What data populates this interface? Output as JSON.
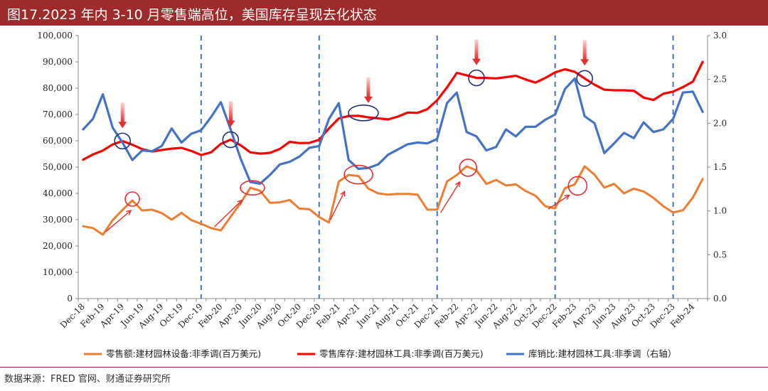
{
  "title": "图17.2023 年内 3-10 月零售端高位，美国库存呈现去化状态",
  "source": "数据来源：FRED 官网、财通证券研究所",
  "colors": {
    "title_bg": "#9e2b2b",
    "sales": "#ed7d31",
    "inventory": "#ff0000",
    "ratio": "#4472c4",
    "divider": "#4472c4",
    "annotation": "#e03030",
    "circle_blue": "#1f2f7a"
  },
  "chart_data": {
    "type": "line",
    "x": [
      "Dec-18",
      "Jan-19",
      "Feb-19",
      "Mar-19",
      "Apr-19",
      "May-19",
      "Jun-19",
      "Jul-19",
      "Aug-19",
      "Sep-19",
      "Oct-19",
      "Nov-19",
      "Dec-19",
      "Jan-20",
      "Feb-20",
      "Mar-20",
      "Apr-20",
      "May-20",
      "Jun-20",
      "Jul-20",
      "Aug-20",
      "Sep-20",
      "Oct-20",
      "Nov-20",
      "Dec-20",
      "Jan-21",
      "Feb-21",
      "Mar-21",
      "Apr-21",
      "May-21",
      "Jun-21",
      "Jul-21",
      "Aug-21",
      "Sep-21",
      "Oct-21",
      "Nov-21",
      "Dec-21",
      "Jan-22",
      "Feb-22",
      "Mar-22",
      "Apr-22",
      "May-22",
      "Jun-22",
      "Jul-22",
      "Aug-22",
      "Sep-22",
      "Oct-22",
      "Nov-22",
      "Dec-22",
      "Jan-23",
      "Feb-23",
      "Mar-23",
      "Apr-23",
      "May-23",
      "Jun-23",
      "Jul-23",
      "Aug-23",
      "Sep-23",
      "Oct-23",
      "Nov-23",
      "Dec-23",
      "Jan-24",
      "Feb-24",
      "Mar-24"
    ],
    "x_tick_labels": [
      "Dec-18",
      "Feb-19",
      "Apr-19",
      "Jun-19",
      "Aug-19",
      "Oct-19",
      "Dec-19",
      "Feb-20",
      "Apr-20",
      "Jun-20",
      "Aug-20",
      "Oct-20",
      "Dec-20",
      "Feb-21",
      "Apr-21",
      "Jun-21",
      "Aug-21",
      "Oct-21",
      "Dec-21",
      "Feb-22",
      "Apr-22",
      "Jun-22",
      "Aug-22",
      "Oct-22",
      "Dec-22",
      "Feb-23",
      "Apr-23",
      "Jun-23",
      "Aug-23",
      "Oct-23",
      "Dec-23",
      "Feb-24"
    ],
    "ylim_left": [
      0,
      100000
    ],
    "yticks_left": [
      "0",
      "10,000",
      "20,000",
      "30,000",
      "40,000",
      "50,000",
      "60,000",
      "70,000",
      "80,000",
      "90,000",
      "100,000"
    ],
    "ylim_right": [
      0,
      3.0
    ],
    "yticks_right": [
      "0.0",
      "0.5",
      "1.0",
      "1.5",
      "2.0",
      "2.5",
      "3.0"
    ],
    "vertical_dividers_at": [
      "Dec-19",
      "Dec-20",
      "Dec-21",
      "Dec-22",
      "Dec-23"
    ],
    "series": [
      {
        "name": "零售额:建材园林设备:非季调(百万美元)",
        "axis": "left",
        "color": "#ed7d31",
        "values": [
          27500,
          26800,
          24300,
          29800,
          33700,
          37300,
          33500,
          33800,
          32500,
          30000,
          32600,
          29800,
          28400,
          26800,
          25900,
          31100,
          36300,
          42100,
          41000,
          36400,
          36600,
          37500,
          34200,
          34000,
          31000,
          28900,
          44500,
          47000,
          46600,
          41800,
          40000,
          39500,
          39800,
          39800,
          39500,
          33800,
          33800,
          44500,
          47000,
          50300,
          48700,
          43600,
          45100,
          43000,
          43400,
          40900,
          39100,
          35100,
          34300,
          42000,
          43400,
          50300,
          47100,
          42200,
          43600,
          40000,
          41800,
          40700,
          38300,
          35100,
          32700,
          33600,
          38400,
          45500
        ]
      },
      {
        "name": "零售库存:建材园林工具:非季调(百万美元)",
        "axis": "left",
        "color": "#ff0000",
        "values": [
          52800,
          54800,
          56300,
          58600,
          59900,
          58500,
          56800,
          55900,
          56500,
          57000,
          57300,
          56100,
          54600,
          55600,
          58800,
          60400,
          58300,
          55600,
          55100,
          55400,
          56900,
          59600,
          59100,
          59200,
          60400,
          64700,
          68500,
          69400,
          69500,
          68900,
          68500,
          68100,
          69200,
          70700,
          70600,
          72000,
          75400,
          80300,
          85800,
          84900,
          83900,
          83900,
          83700,
          84200,
          84700,
          83300,
          82100,
          83900,
          86000,
          87200,
          86200,
          83700,
          81300,
          79400,
          79200,
          79200,
          79000,
          76400,
          75500,
          77900,
          78700,
          80400,
          82500,
          90000
        ]
      },
      {
        "name": "库销比:建材园林工具:非季调（右轴）",
        "axis": "right",
        "color": "#4472c4",
        "values": [
          1.93,
          2.05,
          2.33,
          1.95,
          1.78,
          1.58,
          1.69,
          1.68,
          1.74,
          1.94,
          1.78,
          1.88,
          1.92,
          2.07,
          2.24,
          1.93,
          1.6,
          1.33,
          1.31,
          1.41,
          1.53,
          1.56,
          1.62,
          1.72,
          1.74,
          2.05,
          2.23,
          1.58,
          1.48,
          1.49,
          1.53,
          1.64,
          1.7,
          1.76,
          1.78,
          1.77,
          1.82,
          2.23,
          2.35,
          1.9,
          1.85,
          1.69,
          1.73,
          1.93,
          1.85,
          1.96,
          1.96,
          2.04,
          2.1,
          2.39,
          2.51,
          2.08,
          2.0,
          1.66,
          1.77,
          1.89,
          1.83,
          2.01,
          1.9,
          1.93,
          2.05,
          2.35,
          2.36,
          2.13
        ]
      }
    ]
  }
}
